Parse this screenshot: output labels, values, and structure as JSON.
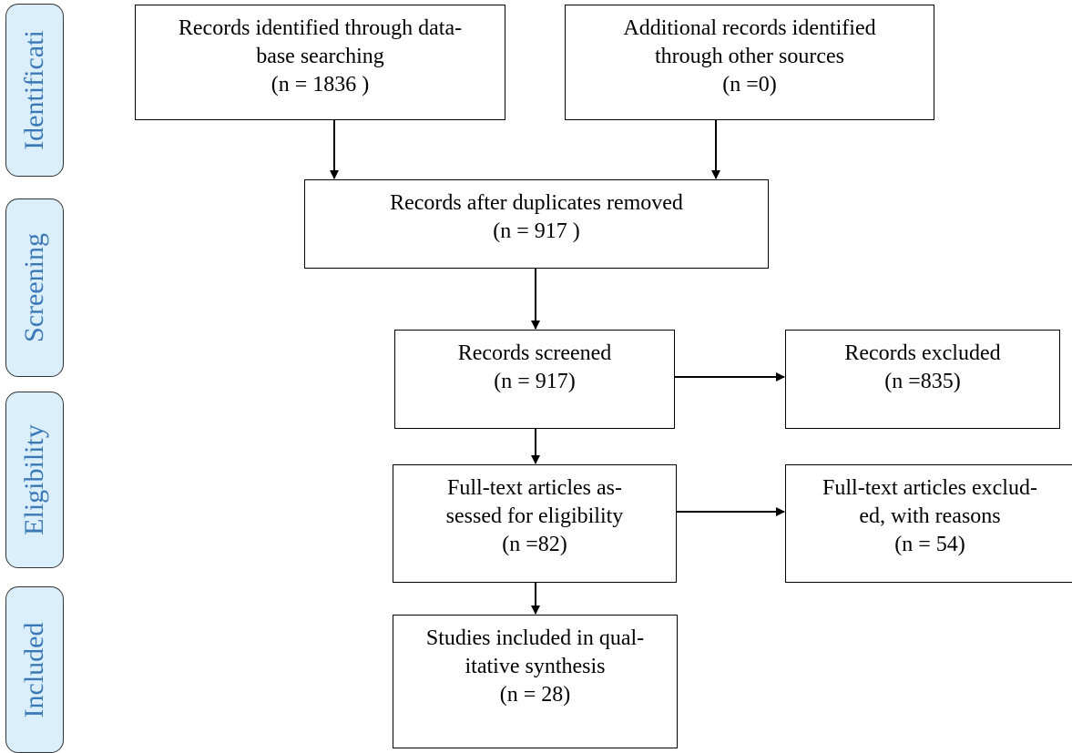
{
  "phases": {
    "identification": "Identificati",
    "screening": "Screening",
    "eligibility": "Eligibility",
    "included": "Included"
  },
  "boxes": {
    "identified_db": {
      "line1": "Records identified through data-",
      "line2": "base searching",
      "count": "(n = 1836 )"
    },
    "additional": {
      "line1": "Additional records identified",
      "line2": "through other sources",
      "count": "(n =0)"
    },
    "after_duplicates": {
      "line1": "Records after duplicates removed",
      "count": "(n = 917 )"
    },
    "screened": {
      "line1": "Records screened",
      "count": "(n = 917)"
    },
    "excluded": {
      "line1": "Records excluded",
      "count": "(n =835)"
    },
    "fulltext": {
      "line1": "Full-text articles as-",
      "line2": "sessed for eligibility",
      "count": "(n =82)"
    },
    "fulltext_excluded": {
      "line1": "Full-text articles exclud-",
      "line2": "ed, with reasons",
      "count": "(n = 54)"
    },
    "included": {
      "line1": "Studies included in qual-",
      "line2": "itative synthesis",
      "count": "(n = 28)"
    }
  }
}
